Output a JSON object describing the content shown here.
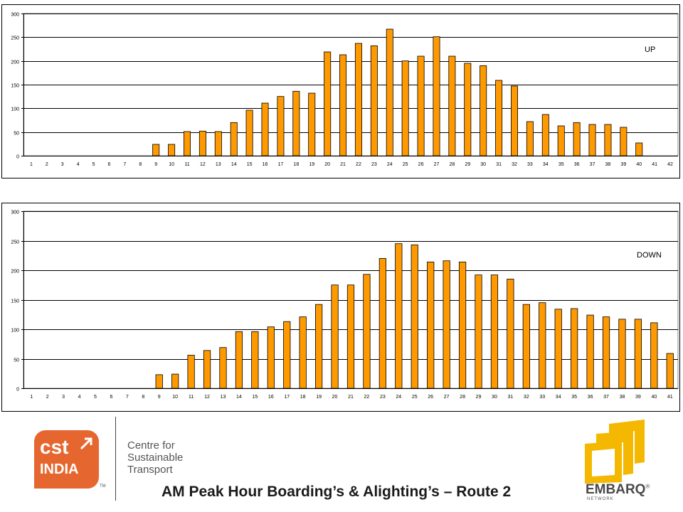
{
  "chart_data": [
    {
      "type": "bar",
      "series_label": "UP",
      "categories": [
        "1",
        "2",
        "3",
        "4",
        "5",
        "6",
        "7",
        "8",
        "9",
        "10",
        "11",
        "12",
        "13",
        "14",
        "15",
        "16",
        "17",
        "18",
        "19",
        "20",
        "21",
        "22",
        "23",
        "24",
        "25",
        "26",
        "27",
        "28",
        "29",
        "30",
        "31",
        "32",
        "33",
        "34",
        "35",
        "36",
        "37",
        "38",
        "39",
        "40",
        "41",
        "42"
      ],
      "values": [
        0,
        0,
        0,
        0,
        0,
        0,
        0,
        0,
        24,
        24,
        51,
        52,
        51,
        70,
        96,
        111,
        125,
        136,
        132,
        219,
        213,
        237,
        232,
        267,
        200,
        210,
        251,
        210,
        195,
        190,
        159,
        147,
        72,
        87,
        63,
        70,
        66,
        66,
        60,
        27,
        0,
        0
      ],
      "yticks": [
        "0",
        "50",
        "100",
        "150",
        "200",
        "250",
        "300"
      ],
      "ylim": [
        0,
        300
      ],
      "grid": true,
      "bar_color": "#ff9900"
    },
    {
      "type": "bar",
      "series_label": "DOWN",
      "categories": [
        "1",
        "2",
        "3",
        "4",
        "5",
        "6",
        "7",
        "8",
        "9",
        "10",
        "11",
        "12",
        "13",
        "14",
        "15",
        "16",
        "17",
        "18",
        "19",
        "20",
        "21",
        "22",
        "23",
        "24",
        "25",
        "26",
        "27",
        "28",
        "29",
        "30",
        "31",
        "32",
        "33",
        "34",
        "35",
        "36",
        "37",
        "38",
        "39",
        "40",
        "41"
      ],
      "values": [
        0,
        0,
        0,
        0,
        0,
        0,
        0,
        0,
        23,
        24,
        56,
        64,
        69,
        96,
        96,
        104,
        113,
        121,
        142,
        175,
        175,
        193,
        220,
        245,
        243,
        214,
        216,
        214,
        192,
        192,
        185,
        142,
        145,
        134,
        135,
        124,
        121,
        117,
        117,
        111,
        59
      ],
      "yticks": [
        "0",
        "50",
        "100",
        "150",
        "200",
        "250",
        "300"
      ],
      "ylim": [
        0,
        300
      ],
      "grid": true,
      "bar_color": "#ff9900"
    }
  ],
  "footer": {
    "title": "AM Peak Hour Boarding’s & Alighting’s – Route 2",
    "cst_logo": {
      "line1": "cst",
      "line2": "INDIA",
      "tm": "TM",
      "color": "#e6662f"
    },
    "org_name": [
      "Centre for",
      "Sustainable",
      "Transport"
    ],
    "embarq": {
      "word": "EMBARQ",
      "reg": "®",
      "network": "NETWORK",
      "color": "#f5b800"
    }
  }
}
